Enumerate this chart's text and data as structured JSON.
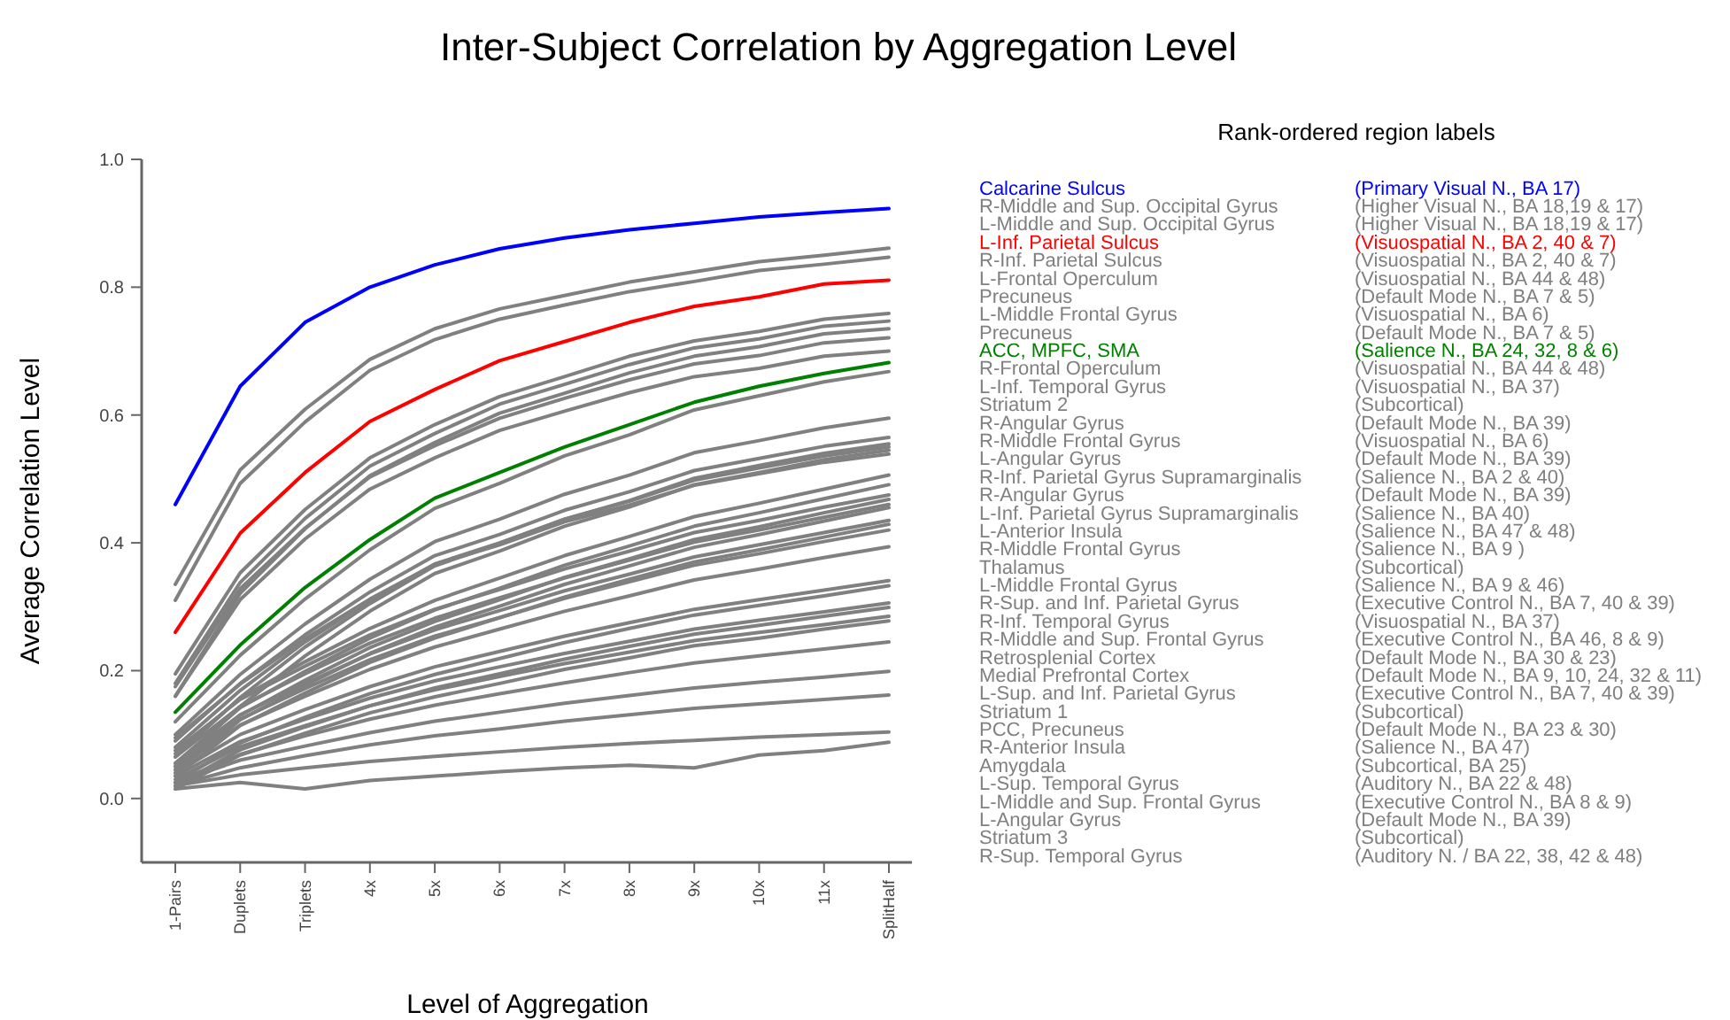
{
  "chart_data": {
    "type": "line",
    "title": "Inter-Subject Correlation by Aggregation Level",
    "xlabel": "Level of Aggregation",
    "ylabel": "Average  Correlation Level",
    "legend_title": "Rank-ordered region labels",
    "legend": "right",
    "marker": "none",
    "line_style": "solid",
    "categories": [
      "1-Pairs",
      "Duplets",
      "Triplets",
      "4x",
      "5x",
      "6x",
      "7x",
      "8x",
      "9x",
      "10x",
      "11x",
      "SplitHalf"
    ],
    "ylim": [
      -0.1,
      1.0
    ],
    "yticks": [
      {
        "value": 0,
        "label": "0.0"
      },
      {
        "value": 0.2,
        "label": "0.2"
      },
      {
        "value": 0.4,
        "label": "0.4"
      },
      {
        "value": 0.6,
        "label": "0.6"
      },
      {
        "value": 0.8,
        "label": "0.8"
      },
      {
        "value": 1,
        "label": "1.0"
      }
    ],
    "series": [
      {
        "name": "Calcarine Sulcus",
        "color": "#0000ff",
        "values": [
          0.46,
          0.645,
          0.745,
          0.8,
          0.835,
          0.86,
          0.877,
          0.89,
          0.9,
          0.91,
          0.917,
          0.923
        ]
      },
      {
        "name": "R-Middle  and Sup. Occipital Gyrus",
        "color": "#808080",
        "values": [
          0.335,
          0.514,
          0.609,
          0.687,
          0.735,
          0.766,
          0.787,
          0.808,
          0.824,
          0.84,
          0.85,
          0.861
        ]
      },
      {
        "name": "L-Middle and Sup. Occipital Gyrus",
        "color": "#808080",
        "values": [
          0.31,
          0.493,
          0.589,
          0.67,
          0.718,
          0.75,
          0.772,
          0.793,
          0.809,
          0.826,
          0.836,
          0.847
        ]
      },
      {
        "name": "L-Inf. Parietal Sulcus",
        "color": "#ff0000",
        "values": [
          0.26,
          0.415,
          0.51,
          0.59,
          0.64,
          0.685,
          0.715,
          0.745,
          0.77,
          0.785,
          0.805,
          0.811
        ]
      },
      {
        "name": "R-Inf. Parietal Sulcus",
        "color": "#808080",
        "values": [
          0.195,
          0.353,
          0.452,
          0.533,
          0.585,
          0.629,
          0.66,
          0.692,
          0.716,
          0.731,
          0.75,
          0.759
        ]
      },
      {
        "name": "L-Frontal Operculum",
        "color": "#808080",
        "values": [
          0.18,
          0.338,
          0.438,
          0.52,
          0.571,
          0.617,
          0.648,
          0.679,
          0.705,
          0.719,
          0.739,
          0.747
        ]
      },
      {
        "name": "Precuneus",
        "color": "#808080",
        "values": [
          0.16,
          0.321,
          0.422,
          0.505,
          0.557,
          0.603,
          0.634,
          0.666,
          0.692,
          0.707,
          0.727,
          0.735
        ]
      },
      {
        "name": "L-Middle  Frontal Gyrus",
        "color": "#808080",
        "values": [
          0.175,
          0.328,
          0.423,
          0.503,
          0.552,
          0.595,
          0.626,
          0.655,
          0.68,
          0.693,
          0.713,
          0.721
        ]
      },
      {
        "name": "Precuneus",
        "color": "#808080",
        "values": [
          0.16,
          0.311,
          0.406,
          0.484,
          0.533,
          0.576,
          0.606,
          0.635,
          0.66,
          0.673,
          0.692,
          0.7
        ]
      },
      {
        "name": "ACC, MPFC, SMA",
        "color": "#008000",
        "values": [
          0.135,
          0.24,
          0.33,
          0.405,
          0.47,
          0.51,
          0.55,
          0.585,
          0.62,
          0.645,
          0.665,
          0.682
        ]
      },
      {
        "name": "R-Frontal Operculum",
        "color": "#808080",
        "values": [
          0.12,
          0.224,
          0.312,
          0.389,
          0.454,
          0.493,
          0.536,
          0.569,
          0.608,
          0.63,
          0.652,
          0.668
        ]
      },
      {
        "name": "L-Inf. Temporal  Gyrus",
        "color": "#808080",
        "values": [
          0.1,
          0.194,
          0.273,
          0.343,
          0.402,
          0.437,
          0.476,
          0.506,
          0.541,
          0.56,
          0.58,
          0.595
        ]
      },
      {
        "name": "Striatum 2",
        "color": "#808080",
        "values": [
          0.09,
          0.18,
          0.256,
          0.323,
          0.38,
          0.413,
          0.451,
          0.48,
          0.513,
          0.532,
          0.551,
          0.565
        ]
      },
      {
        "name": "R-Angular Gyrus",
        "color": "#808080",
        "values": [
          0.065,
          0.158,
          0.237,
          0.305,
          0.364,
          0.399,
          0.437,
          0.466,
          0.501,
          0.521,
          0.54,
          0.555
        ]
      },
      {
        "name": "R-Middle  Frontal Gyrus",
        "color": "#808080",
        "values": [
          0.08,
          0.169,
          0.245,
          0.31,
          0.367,
          0.4,
          0.437,
          0.465,
          0.498,
          0.517,
          0.536,
          0.55
        ]
      },
      {
        "name": "L-Angular Gyrus",
        "color": "#808080",
        "values": [
          0.05,
          0.144,
          0.223,
          0.293,
          0.352,
          0.387,
          0.426,
          0.456,
          0.491,
          0.51,
          0.53,
          0.545
        ]
      },
      {
        "name": "R-Inf. Parietal Gyrus Supramarginalis",
        "color": "#808080",
        "values": [
          0.095,
          0.179,
          0.25,
          0.312,
          0.366,
          0.397,
          0.433,
          0.459,
          0.49,
          0.508,
          0.526,
          0.539
        ]
      },
      {
        "name": "R-Angular Gyrus",
        "color": "#808080",
        "values": [
          0.07,
          0.157,
          0.214,
          0.266,
          0.31,
          0.345,
          0.38,
          0.41,
          0.441,
          0.462,
          0.484,
          0.506
        ]
      },
      {
        "name": "L-Inf. Parietal  Gyrus Supramarginalis",
        "color": "#808080",
        "values": [
          0.055,
          0.142,
          0.199,
          0.251,
          0.295,
          0.329,
          0.365,
          0.395,
          0.426,
          0.447,
          0.469,
          0.491
        ]
      },
      {
        "name": "L-Anterior Insula",
        "color": "#808080",
        "values": [
          0.075,
          0.155,
          0.207,
          0.256,
          0.296,
          0.327,
          0.359,
          0.387,
          0.416,
          0.435,
          0.456,
          0.475
        ]
      },
      {
        "name": "R-Middle  Frontal Gyrus",
        "color": "#808080",
        "values": [
          0.045,
          0.13,
          0.185,
          0.236,
          0.277,
          0.311,
          0.346,
          0.375,
          0.405,
          0.425,
          0.447,
          0.468
        ]
      },
      {
        "name": "Thalamus",
        "color": "#808080",
        "values": [
          0.065,
          0.144,
          0.195,
          0.243,
          0.282,
          0.314,
          0.345,
          0.373,
          0.401,
          0.42,
          0.44,
          0.46
        ]
      },
      {
        "name": "L-Middle Frontal Gyrus",
        "color": "#808080",
        "values": [
          0.04,
          0.123,
          0.177,
          0.227,
          0.268,
          0.301,
          0.335,
          0.364,
          0.393,
          0.413,
          0.434,
          0.455
        ]
      },
      {
        "name": "R-Sup. and Inf. Parietal  Gyrus",
        "color": "#808080",
        "values": [
          0.055,
          0.131,
          0.18,
          0.226,
          0.264,
          0.294,
          0.325,
          0.351,
          0.378,
          0.397,
          0.416,
          0.435
        ]
      },
      {
        "name": "R-Inf. Temporal Gyrus",
        "color": "#808080",
        "values": [
          0.035,
          0.114,
          0.165,
          0.213,
          0.251,
          0.283,
          0.315,
          0.343,
          0.37,
          0.389,
          0.409,
          0.429
        ]
      },
      {
        "name": "R-Middle  and Sup. Frontal Gyrus",
        "color": "#808080",
        "values": [
          0.05,
          0.124,
          0.172,
          0.217,
          0.254,
          0.283,
          0.313,
          0.339,
          0.365,
          0.383,
          0.402,
          0.42
        ]
      },
      {
        "name": "Retrosplenial Cortex",
        "color": "#808080",
        "values": [
          0.045,
          0.115,
          0.16,
          0.202,
          0.237,
          0.265,
          0.293,
          0.317,
          0.342,
          0.359,
          0.377,
          0.394
        ]
      },
      {
        "name": "Medial Prefrontal Cortex",
        "color": "#808080",
        "values": [
          0.04,
          0.1,
          0.139,
          0.175,
          0.206,
          0.23,
          0.254,
          0.275,
          0.296,
          0.311,
          0.326,
          0.341
        ]
      },
      {
        "name": "L-Sup. and Inf. Parietal Gyrus",
        "color": "#808080",
        "values": [
          0.025,
          0.087,
          0.127,
          0.164,
          0.194,
          0.219,
          0.244,
          0.266,
          0.287,
          0.302,
          0.317,
          0.333
        ]
      },
      {
        "name": "Striatum 1",
        "color": "#808080",
        "values": [
          0.035,
          0.089,
          0.124,
          0.157,
          0.184,
          0.206,
          0.227,
          0.246,
          0.265,
          0.279,
          0.292,
          0.306
        ]
      },
      {
        "name": "PCC,  Precuneus",
        "color": "#808080",
        "values": [
          0.02,
          0.076,
          0.112,
          0.145,
          0.173,
          0.195,
          0.218,
          0.238,
          0.257,
          0.271,
          0.285,
          0.299
        ]
      },
      {
        "name": "R-Anterior Insula",
        "color": "#808080",
        "values": [
          0.03,
          0.081,
          0.114,
          0.145,
          0.17,
          0.191,
          0.211,
          0.229,
          0.247,
          0.26,
          0.272,
          0.285
        ]
      },
      {
        "name": "Amygdala",
        "color": "#808080",
        "values": [
          0.015,
          0.068,
          0.102,
          0.134,
          0.159,
          0.18,
          0.202,
          0.22,
          0.239,
          0.251,
          0.265,
          0.278
        ]
      },
      {
        "name": "L-Sup. Temporal Gyrus",
        "color": "#808080",
        "values": [
          0.025,
          0.069,
          0.098,
          0.124,
          0.146,
          0.164,
          0.181,
          0.197,
          0.212,
          0.223,
          0.234,
          0.245
        ]
      },
      {
        "name": "L-Middle and Sup. Frontal Gyrus",
        "color": "#808080",
        "values": [
          0.025,
          0.06,
          0.082,
          0.103,
          0.121,
          0.135,
          0.149,
          0.161,
          0.173,
          0.182,
          0.19,
          0.199
        ]
      },
      {
        "name": "L-Angular Gyrus",
        "color": "#808080",
        "values": [
          0.02,
          0.048,
          0.067,
          0.084,
          0.098,
          0.109,
          0.121,
          0.131,
          0.141,
          0.148,
          0.155,
          0.162
        ]
      },
      {
        "name": "Striatum 3",
        "color": "#808080",
        "values": [
          0.02,
          0.037,
          0.048,
          0.058,
          0.066,
          0.073,
          0.08,
          0.086,
          0.091,
          0.096,
          0.1,
          0.104
        ]
      },
      {
        "name": "R-Sup. Temporal Gyrus",
        "color": "#808080",
        "values": [
          0.015,
          0.025,
          0.015,
          0.028,
          0.035,
          0.042,
          0.048,
          0.052,
          0.048,
          0.068,
          0.075,
          0.088
        ]
      }
    ],
    "annotations": [
      "(Primary Visual N., BA 17)",
      "(Higher Visual N.,  BA 18,19 & 17)",
      "(Higher Visual N.,  BA 18,19 & 17)",
      "(Visuospatial N., BA 2, 40 & 7)",
      "(Visuospatial N.,  BA 2, 40 & 7)",
      "(Visuospatial N.,  BA 44 & 48)",
      "(Default Mode  N.,  BA 7 & 5)",
      "(Visuospatial N.,  BA 6)",
      "(Default Mode  N.,  BA 7 & 5)",
      "(Salience N., BA 24, 32, 8 & 6)",
      "(Visuospatial N.,  BA 44 & 48)",
      "(Visuospatial N.,  BA 37)",
      "(Subcortical)",
      "(Default Mode  N.,  BA 39)",
      "(Visuospatial N.,  BA 6)",
      "(Default Mode  N.,  BA 39)",
      "(Salience N.,  BA 2 & 40)",
      "(Default Mode  N.,  BA 39)",
      "(Salience N.,  BA 40)",
      "(Salience N.,  BA 47 & 48)",
      "(Salience  N.,  BA 9 )",
      "(Subcortical)",
      "(Salience N.,  BA 9 & 46)",
      "(Executive Control N.,  BA 7, 40 & 39)",
      "(Visuospatial N.,  BA 37)",
      "(Executive Control N.,  BA 46, 8 & 9)",
      "(Default Mode  N.,  BA 30 & 23)",
      "(Default Mode  N.,  BA 9, 10, 24, 32 & 11)",
      "(Executive Control N.,  BA 7, 40 & 39)",
      "(Subcortical)",
      "(Default Mode  N.,  BA 23 & 30)",
      "(Salience N.,  BA 47)",
      "(Subcortical, BA 25)",
      "(Auditory N.,  BA 22 & 48)",
      "(Executive Control N.,  BA 8 & 9)",
      "(Default Mode  N.,  BA 39)",
      "(Subcortical)",
      "(Auditory N. / BA 22, 38, 42 & 48)"
    ]
  }
}
